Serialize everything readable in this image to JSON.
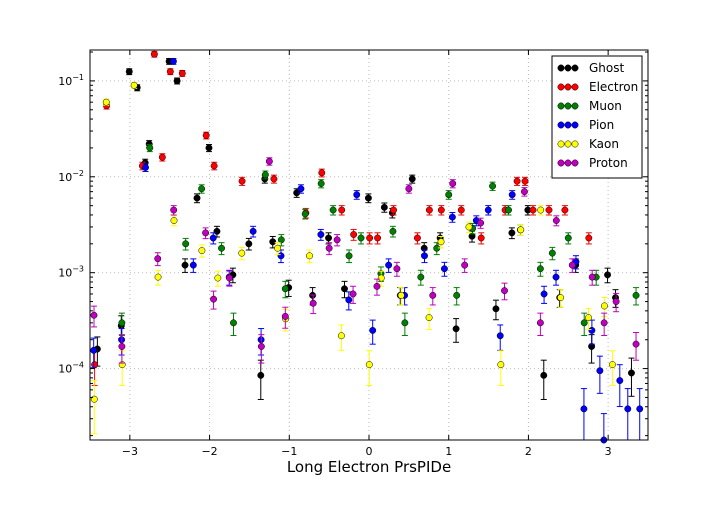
{
  "chart_data": {
    "type": "scatter",
    "title": "",
    "xlabel": "Long Electron PrsPIDe",
    "ylabel": "",
    "xlim": [
      -3.5,
      3.5
    ],
    "ylim": [
      1.8e-05,
      0.21
    ],
    "yscale": "log",
    "grid": true,
    "legend_position": "top-right",
    "x_ticks": [
      {
        "value": -3,
        "label": "−3"
      },
      {
        "value": -2,
        "label": "−2"
      },
      {
        "value": -1,
        "label": "−1"
      },
      {
        "value": 0,
        "label": "0"
      },
      {
        "value": 1,
        "label": "1"
      },
      {
        "value": 2,
        "label": "2"
      },
      {
        "value": 3,
        "label": "3"
      }
    ],
    "y_ticks": [
      {
        "value": 0.0001,
        "mant": "10",
        "exp": "−4"
      },
      {
        "value": 0.001,
        "mant": "10",
        "exp": "−3"
      },
      {
        "value": 0.01,
        "mant": "10",
        "exp": "−2"
      },
      {
        "value": 0.1,
        "mant": "10",
        "exp": "−1"
      }
    ],
    "series": [
      {
        "name": "Ghost",
        "color": "#000000",
        "points": [
          [
            -3.4,
            0.00016
          ],
          [
            -3.1,
            0.00028
          ],
          [
            -3.0,
            0.125
          ],
          [
            -2.9,
            0.085
          ],
          [
            -2.8,
            0.014
          ],
          [
            -2.75,
            0.022
          ],
          [
            -2.5,
            0.16
          ],
          [
            -2.4,
            0.1
          ],
          [
            -2.3,
            0.0012
          ],
          [
            -2.15,
            0.006
          ],
          [
            -2.0,
            0.02
          ],
          [
            -1.9,
            0.0027
          ],
          [
            -1.7,
            0.00095
          ],
          [
            -1.5,
            0.002
          ],
          [
            -1.35,
            8.5e-05
          ],
          [
            -1.3,
            0.0095
          ],
          [
            -1.2,
            0.0021
          ],
          [
            -1.0,
            0.0007
          ],
          [
            -0.9,
            0.0068
          ],
          [
            -0.7,
            0.00058
          ],
          [
            -0.5,
            0.0023
          ],
          [
            -0.3,
            0.00068
          ],
          [
            0.0,
            0.006
          ],
          [
            0.2,
            0.0048
          ],
          [
            0.3,
            0.0042
          ],
          [
            0.4,
            0.00058
          ],
          [
            0.55,
            0.0095
          ],
          [
            0.7,
            0.0018
          ],
          [
            0.9,
            0.0023
          ],
          [
            1.1,
            0.00026
          ],
          [
            1.3,
            0.0024
          ],
          [
            1.6,
            0.00042
          ],
          [
            1.8,
            0.0026
          ],
          [
            2.0,
            0.0045
          ],
          [
            2.2,
            8.5e-05
          ],
          [
            2.4,
            0.00055
          ],
          [
            2.6,
            0.0012
          ],
          [
            2.8,
            0.00017
          ],
          [
            3.0,
            0.00095
          ],
          [
            3.1,
            0.00055
          ],
          [
            3.3,
            9e-05
          ]
        ]
      },
      {
        "name": "Electron",
        "color": "#ff0000",
        "points": [
          [
            -3.45,
            0.00011
          ],
          [
            -3.3,
            0.055
          ],
          [
            -2.85,
            0.013
          ],
          [
            -2.7,
            0.19
          ],
          [
            -2.6,
            0.016
          ],
          [
            -2.5,
            0.125
          ],
          [
            -2.35,
            0.12
          ],
          [
            -2.05,
            0.027
          ],
          [
            -1.95,
            0.013
          ],
          [
            -1.6,
            0.009
          ],
          [
            -1.2,
            0.0095
          ],
          [
            -0.8,
            0.0042
          ],
          [
            -0.6,
            0.011
          ],
          [
            -0.35,
            0.0045
          ],
          [
            -0.2,
            0.0025
          ],
          [
            0.0,
            0.0023
          ],
          [
            0.1,
            0.0023
          ],
          [
            0.3,
            0.0045
          ],
          [
            0.6,
            0.0023
          ],
          [
            0.75,
            0.0045
          ],
          [
            0.9,
            0.0045
          ],
          [
            1.15,
            0.0045
          ],
          [
            1.4,
            0.0023
          ],
          [
            1.7,
            0.0045
          ],
          [
            1.85,
            0.009
          ],
          [
            1.95,
            0.009
          ],
          [
            2.05,
            0.0045
          ],
          [
            2.25,
            0.0045
          ],
          [
            2.45,
            0.0045
          ],
          [
            2.75,
            0.0023
          ]
        ]
      },
      {
        "name": "Muon",
        "color": "#007f00",
        "points": [
          [
            -3.1,
            0.0003
          ],
          [
            -2.75,
            0.02
          ],
          [
            -2.3,
            0.002
          ],
          [
            -2.1,
            0.0075
          ],
          [
            -1.85,
            0.0018
          ],
          [
            -1.7,
            0.0003
          ],
          [
            -1.3,
            0.0105
          ],
          [
            -1.1,
            0.0022
          ],
          [
            -1.05,
            0.00068
          ],
          [
            -0.8,
            0.0041
          ],
          [
            -0.6,
            0.0085
          ],
          [
            -0.45,
            0.0045
          ],
          [
            -0.25,
            0.0015
          ],
          [
            -0.1,
            0.0023
          ],
          [
            0.15,
            0.00098
          ],
          [
            0.3,
            0.0027
          ],
          [
            0.45,
            0.0003
          ],
          [
            0.65,
            0.0009
          ],
          [
            0.85,
            0.0018
          ],
          [
            1.0,
            0.0065
          ],
          [
            1.1,
            0.00058
          ],
          [
            1.3,
            0.0029
          ],
          [
            1.55,
            0.008
          ],
          [
            1.75,
            0.0045
          ],
          [
            1.9,
            0.0028
          ],
          [
            2.15,
            0.0011
          ],
          [
            2.3,
            0.0016
          ],
          [
            2.5,
            0.0023
          ],
          [
            2.7,
            0.0003
          ],
          [
            2.85,
            0.0009
          ],
          [
            3.35,
            0.00058
          ]
        ]
      },
      {
        "name": "Pion",
        "color": "#0000ff",
        "points": [
          [
            -3.45,
            0.000155
          ],
          [
            -3.1,
            0.0002
          ],
          [
            -2.8,
            0.0125
          ],
          [
            -2.45,
            0.16
          ],
          [
            -2.2,
            0.0012
          ],
          [
            -1.95,
            0.0023
          ],
          [
            -1.75,
            0.0009
          ],
          [
            -1.45,
            0.0027
          ],
          [
            -1.35,
            0.0002
          ],
          [
            -1.1,
            0.0015
          ],
          [
            -0.85,
            0.0075
          ],
          [
            -0.6,
            0.0025
          ],
          [
            -0.25,
            0.00052
          ],
          [
            -0.15,
            0.0065
          ],
          [
            0.05,
            0.00025
          ],
          [
            0.25,
            0.0012
          ],
          [
            0.45,
            0.00058
          ],
          [
            0.7,
            0.0015
          ],
          [
            0.95,
            0.0011
          ],
          [
            1.05,
            0.0038
          ],
          [
            1.35,
            0.0035
          ],
          [
            1.5,
            0.0045
          ],
          [
            1.65,
            0.00022
          ],
          [
            1.8,
            0.0065
          ],
          [
            2.2,
            0.0006
          ],
          [
            2.35,
            0.0009
          ],
          [
            2.6,
            0.0013
          ],
          [
            2.7,
            3.8e-05
          ],
          [
            2.95,
            1.8e-05
          ],
          [
            3.15,
            7.5e-05
          ],
          [
            3.25,
            3.8e-05
          ],
          [
            3.4,
            3.8e-05
          ],
          [
            2.8,
            0.00025
          ],
          [
            2.9,
            9.5e-05
          ]
        ]
      },
      {
        "name": "Kaon",
        "color": "#ffff00",
        "points": [
          [
            -3.45,
            4.8e-05
          ],
          [
            -3.3,
            0.06
          ],
          [
            -3.1,
            0.00011
          ],
          [
            -2.95,
            0.09
          ],
          [
            -2.65,
            0.0009
          ],
          [
            -2.45,
            0.0035
          ],
          [
            -2.1,
            0.0017
          ],
          [
            -1.9,
            0.00088
          ],
          [
            -1.6,
            0.0016
          ],
          [
            -1.15,
            0.0018
          ],
          [
            -1.05,
            0.00033
          ],
          [
            -0.75,
            0.0015
          ],
          [
            -0.35,
            0.00022
          ],
          [
            0.0,
            0.00011
          ],
          [
            0.15,
            0.00088
          ],
          [
            0.4,
            0.00058
          ],
          [
            0.75,
            0.00034
          ],
          [
            0.9,
            0.0021
          ],
          [
            1.25,
            0.003
          ],
          [
            1.65,
            0.00011
          ],
          [
            1.9,
            0.0028
          ],
          [
            2.15,
            0.0045
          ],
          [
            2.4,
            0.00055
          ],
          [
            2.75,
            0.00034
          ],
          [
            2.95,
            0.00045
          ],
          [
            3.05,
            0.00011
          ]
        ]
      },
      {
        "name": "Proton",
        "color": "#bf00bf",
        "points": [
          [
            -3.45,
            0.00036
          ],
          [
            -3.1,
            0.00017
          ],
          [
            -2.65,
            0.0014
          ],
          [
            -2.45,
            0.0045
          ],
          [
            -2.05,
            0.0026
          ],
          [
            -1.95,
            0.00053
          ],
          [
            -1.75,
            0.00088
          ],
          [
            -1.35,
            0.00017
          ],
          [
            -1.25,
            0.0145
          ],
          [
            -1.05,
            0.00035
          ],
          [
            -0.7,
            0.00048
          ],
          [
            -0.5,
            0.0018
          ],
          [
            -0.4,
            0.0022
          ],
          [
            -0.2,
            0.0006
          ],
          [
            0.1,
            0.00072
          ],
          [
            0.35,
            0.0011
          ],
          [
            0.5,
            0.0075
          ],
          [
            0.8,
            0.00058
          ],
          [
            1.05,
            0.0085
          ],
          [
            1.2,
            0.0012
          ],
          [
            1.4,
            0.0033
          ],
          [
            1.7,
            0.00065
          ],
          [
            1.95,
            0.007
          ],
          [
            2.15,
            0.0003
          ],
          [
            2.35,
            0.0035
          ],
          [
            2.55,
            0.0012
          ],
          [
            2.8,
            0.0009
          ],
          [
            2.95,
            0.0003
          ],
          [
            3.1,
            0.0005
          ],
          [
            3.35,
            0.00018
          ]
        ]
      }
    ]
  }
}
